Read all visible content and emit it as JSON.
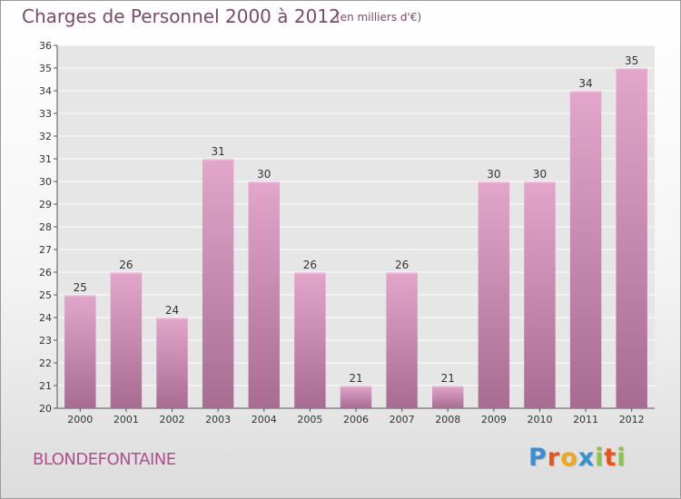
{
  "header": {
    "title": "Charges de Personnel 2000 à 2012",
    "subtitle": "(en milliers d'€)"
  },
  "footer": {
    "commune": "BLONDEFONTAINE",
    "logo_letters": [
      {
        "ch": "P",
        "color": "#3a8fd0"
      },
      {
        "ch": "r",
        "color": "#e8541a"
      },
      {
        "ch": "o",
        "color": "#f0a81a"
      },
      {
        "ch": "x",
        "color": "#3a8fd0"
      },
      {
        "ch": "i",
        "color": "#8cc63e"
      },
      {
        "ch": "t",
        "color": "#e8541a"
      },
      {
        "ch": "i",
        "color": "#8cc63e"
      }
    ]
  },
  "chart_data": {
    "type": "bar",
    "title": "Charges de Personnel 2000 à 2012",
    "subtitle": "(en milliers d'€)",
    "categories": [
      "2000",
      "2001",
      "2002",
      "2003",
      "2004",
      "2005",
      "2006",
      "2007",
      "2008",
      "2009",
      "2010",
      "2011",
      "2012"
    ],
    "values": [
      25,
      26,
      24,
      31,
      30,
      26,
      21,
      26,
      21,
      30,
      30,
      34,
      35
    ],
    "ylim": [
      20,
      36
    ],
    "yticks": [
      20,
      21,
      22,
      23,
      24,
      25,
      26,
      27,
      28,
      29,
      30,
      31,
      32,
      33,
      34,
      35,
      36
    ],
    "grid": true,
    "bar_color_top": "#e3a6cb",
    "bar_color_bottom": "#a86c93",
    "plot_bg": "#e6e6e6",
    "grid_color": "#ffffff"
  }
}
